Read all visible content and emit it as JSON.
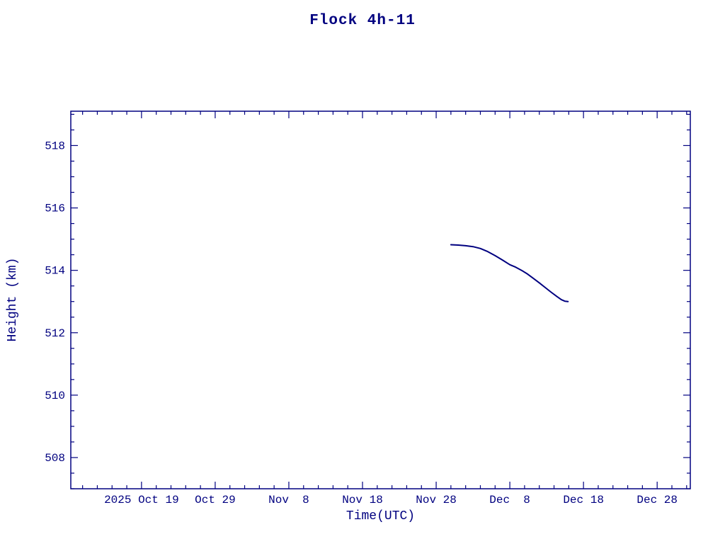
{
  "page": {
    "background_color": "#ffffff",
    "accent_color": "#000080"
  },
  "chart_data": {
    "type": "line",
    "title": "Flock 4h-11",
    "xlabel": "Time(UTC)",
    "ylabel": "Height (km)",
    "line_color": "#000080",
    "grid": false,
    "legend": "none",
    "x_axis": {
      "unit": "days relative to 2025 Oct 19 tick",
      "domain": [
        -9.6,
        74.5
      ],
      "major_ticks": [
        {
          "day": 0,
          "label": "2025 Oct 19"
        },
        {
          "day": 10,
          "label": "Oct 29"
        },
        {
          "day": 20,
          "label": "Nov  8"
        },
        {
          "day": 30,
          "label": "Nov 18"
        },
        {
          "day": 40,
          "label": "Nov 28"
        },
        {
          "day": 50,
          "label": "Dec  8"
        },
        {
          "day": 60,
          "label": "Dec 18"
        },
        {
          "day": 70,
          "label": "Dec 28"
        }
      ],
      "minor_tick_step_days": 2
    },
    "y_axis": {
      "domain": [
        507.0,
        519.1
      ],
      "major_ticks": [
        508,
        510,
        512,
        514,
        516,
        518
      ],
      "minor_tick_step": 0.5
    },
    "series": [
      {
        "name": "Flock 4h-11 height",
        "points_day_km": [
          [
            42.0,
            514.82
          ],
          [
            43.0,
            514.81
          ],
          [
            44.0,
            514.79
          ],
          [
            45.0,
            514.76
          ],
          [
            46.0,
            514.7
          ],
          [
            47.0,
            514.6
          ],
          [
            48.0,
            514.47
          ],
          [
            49.0,
            514.33
          ],
          [
            50.0,
            514.18
          ],
          [
            50.8,
            514.1
          ],
          [
            51.6,
            514.0
          ],
          [
            52.4,
            513.88
          ],
          [
            53.2,
            513.74
          ],
          [
            54.0,
            513.6
          ],
          [
            54.8,
            513.45
          ],
          [
            55.6,
            513.3
          ],
          [
            56.4,
            513.16
          ],
          [
            57.0,
            513.06
          ],
          [
            57.5,
            513.01
          ],
          [
            57.9,
            513.0
          ]
        ]
      }
    ]
  }
}
